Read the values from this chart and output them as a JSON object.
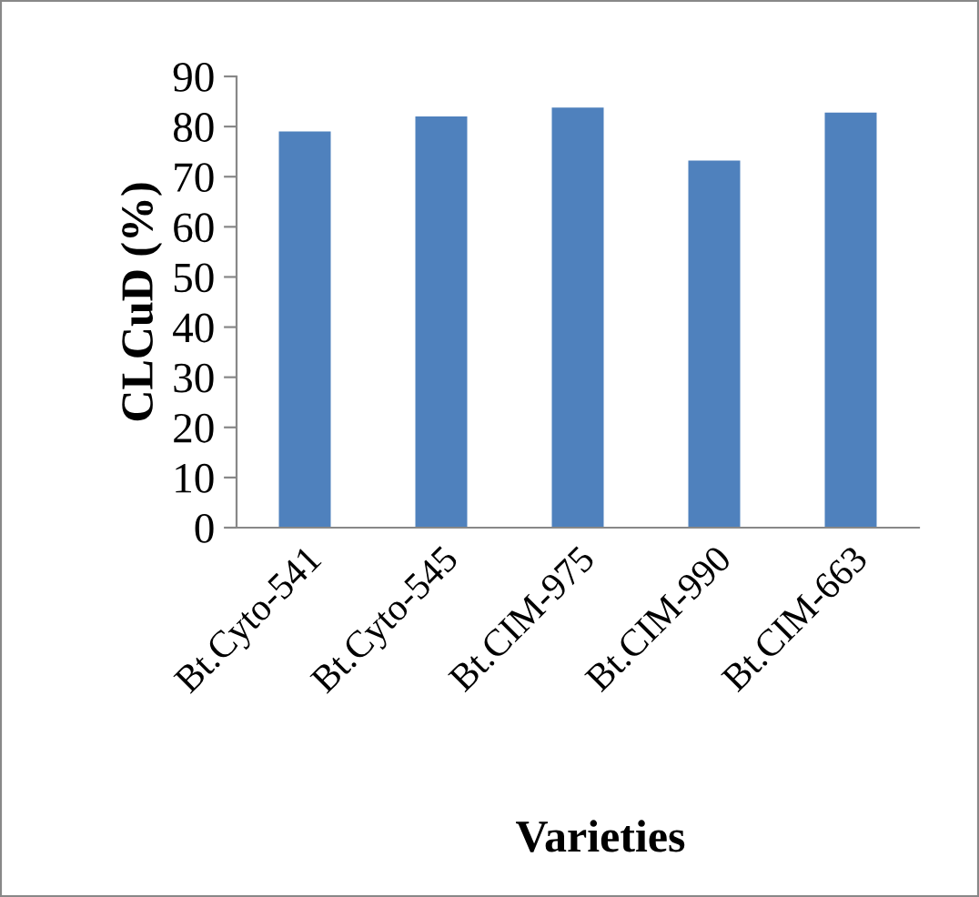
{
  "chart_data": {
    "type": "bar",
    "xlabel": "Varieties",
    "ylabel": "CLCuD (%)",
    "categories": [
      "Bt.Cyto-541",
      "Bt.Cyto-545",
      "Bt.CIM-975",
      "Bt.CIM-990",
      "Bt.CIM-663"
    ],
    "values": [
      79,
      82,
      83.8,
      73.2,
      82.8
    ],
    "color": "#4f81bd",
    "ylim": [
      0,
      90
    ],
    "yticks": [
      0,
      10,
      20,
      30,
      40,
      50,
      60,
      70,
      80,
      90
    ],
    "grid": false
  }
}
